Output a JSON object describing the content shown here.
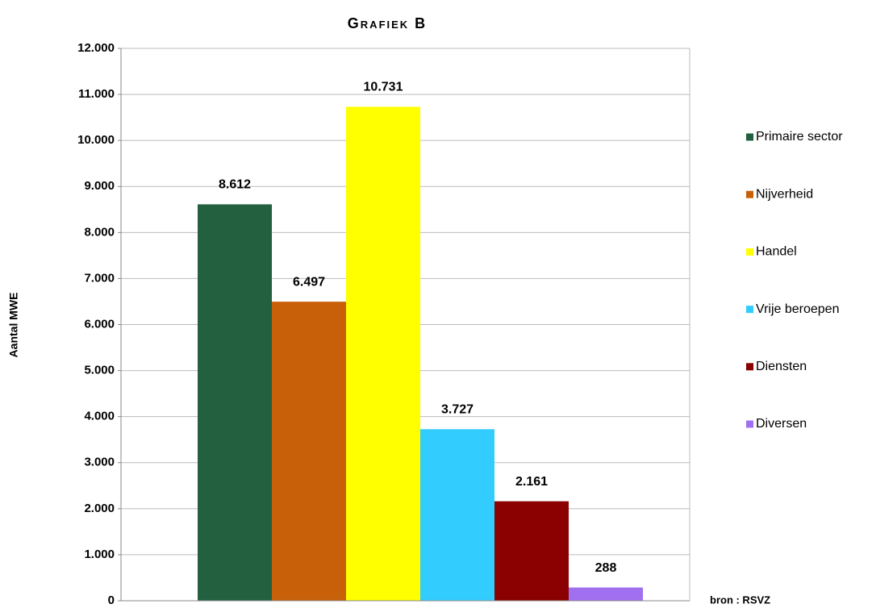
{
  "chart_data": {
    "type": "bar",
    "title": "Grafiek B",
    "y_label": "Aantal MWE",
    "source": "bron : RSVZ",
    "categories": [
      null
    ],
    "series": [
      {
        "name": "Primaire sector",
        "color": "#226040",
        "values": [
          8612
        ],
        "value_labels": [
          "8.612"
        ]
      },
      {
        "name": "Nijverheid",
        "color": "#c8600a",
        "values": [
          6497
        ],
        "value_labels": [
          "6.497"
        ]
      },
      {
        "name": "Handel",
        "color": "#ffff00",
        "values": [
          10731
        ],
        "value_labels": [
          "10.731"
        ]
      },
      {
        "name": "Vrije beroepen",
        "color": "#33ccff",
        "values": [
          3727
        ],
        "value_labels": [
          "3.727"
        ]
      },
      {
        "name": "Diensten",
        "color": "#8b0000",
        "values": [
          2161
        ],
        "value_labels": [
          "2.161"
        ]
      },
      {
        "name": "Diversen",
        "color": "#a070f0",
        "values": [
          288
        ],
        "value_labels": [
          "288"
        ]
      }
    ],
    "ylim": [
      0,
      12000
    ],
    "yticks": [
      0,
      {
        "value": 1000,
        "label": "1.000"
      },
      {
        "value": 2000,
        "label": "2.000"
      },
      {
        "value": 3000,
        "label": "3.000"
      },
      {
        "value": 4000,
        "label": "4.000"
      },
      {
        "value": 5000,
        "label": "5.000"
      },
      {
        "value": 6000,
        "label": "6.000"
      },
      {
        "value": 7000,
        "label": "7.000"
      },
      {
        "value": 8000,
        "label": "8.000"
      },
      {
        "value": 9000,
        "label": "9.000"
      },
      {
        "value": 10000,
        "label": "10.000"
      },
      {
        "value": 11000,
        "label": "11.000"
      },
      {
        "value": 12000,
        "label": "12.000"
      }
    ],
    "grid": true,
    "legend": "right"
  }
}
